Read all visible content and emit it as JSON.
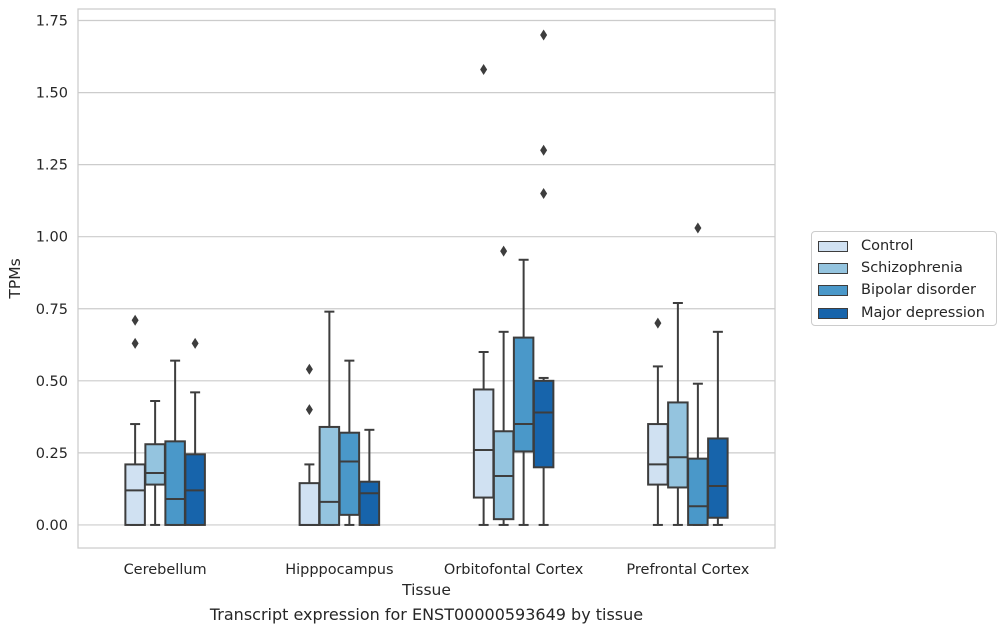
{
  "caption": "Transcript expression for ENST00000593649 by tissue",
  "chart_data": {
    "type": "box",
    "xlabel": "Tissue",
    "ylabel": "TPMs",
    "ylim": [
      -0.08,
      1.79
    ],
    "yticks": [
      "0.00",
      "0.25",
      "0.50",
      "0.75",
      "1.00",
      "1.25",
      "1.50",
      "1.75"
    ],
    "ytick_values": [
      0,
      0.25,
      0.5,
      0.75,
      1.0,
      1.25,
      1.5,
      1.75
    ],
    "grid": "horizontal",
    "legend_position": "right",
    "categories": [
      "Cerebellum",
      "Hipppocampus",
      "Orbitofontal Cortex",
      "Prefrontal Cortex"
    ],
    "series": [
      {
        "name": "Control",
        "color": "#d0e1f2",
        "boxes": [
          {
            "whislo": 0.0,
            "q1": 0.0,
            "med": 0.12,
            "q3": 0.21,
            "whishi": 0.35,
            "fliers": [
              0.63,
              0.71
            ]
          },
          {
            "whislo": 0.0,
            "q1": 0.0,
            "med": 0.0,
            "q3": 0.145,
            "whishi": 0.21,
            "fliers": [
              0.4,
              0.54
            ]
          },
          {
            "whislo": 0.0,
            "q1": 0.095,
            "med": 0.26,
            "q3": 0.47,
            "whishi": 0.6,
            "fliers": [
              1.58
            ]
          },
          {
            "whislo": 0.0,
            "q1": 0.14,
            "med": 0.21,
            "q3": 0.35,
            "whishi": 0.55,
            "fliers": [
              0.7
            ]
          }
        ]
      },
      {
        "name": "Schizophrenia",
        "color": "#94c4df",
        "boxes": [
          {
            "whislo": 0.0,
            "q1": 0.14,
            "med": 0.18,
            "q3": 0.28,
            "whishi": 0.43,
            "fliers": []
          },
          {
            "whislo": 0.0,
            "q1": 0.0,
            "med": 0.08,
            "q3": 0.34,
            "whishi": 0.74,
            "fliers": []
          },
          {
            "whislo": 0.0,
            "q1": 0.02,
            "med": 0.17,
            "q3": 0.325,
            "whishi": 0.67,
            "fliers": [
              0.95
            ]
          },
          {
            "whislo": 0.0,
            "q1": 0.13,
            "med": 0.235,
            "q3": 0.425,
            "whishi": 0.77,
            "fliers": []
          }
        ]
      },
      {
        "name": "Bipolar disorder",
        "color": "#4a98c9",
        "boxes": [
          {
            "whislo": 0.0,
            "q1": 0.0,
            "med": 0.09,
            "q3": 0.29,
            "whishi": 0.57,
            "fliers": []
          },
          {
            "whislo": 0.0,
            "q1": 0.035,
            "med": 0.22,
            "q3": 0.32,
            "whishi": 0.57,
            "fliers": []
          },
          {
            "whislo": 0.0,
            "q1": 0.255,
            "med": 0.35,
            "q3": 0.65,
            "whishi": 0.92,
            "fliers": []
          },
          {
            "whislo": 0.0,
            "q1": 0.0,
            "med": 0.065,
            "q3": 0.23,
            "whishi": 0.49,
            "fliers": [
              1.03
            ]
          }
        ]
      },
      {
        "name": "Major depression",
        "color": "#1764ab",
        "boxes": [
          {
            "whislo": 0.0,
            "q1": 0.0,
            "med": 0.12,
            "q3": 0.245,
            "whishi": 0.46,
            "fliers": [
              0.63
            ]
          },
          {
            "whislo": 0.0,
            "q1": 0.0,
            "med": 0.11,
            "q3": 0.15,
            "whishi": 0.33,
            "fliers": []
          },
          {
            "whislo": 0.0,
            "q1": 0.2,
            "med": 0.39,
            "q3": 0.5,
            "whishi": 0.51,
            "fliers": [
              1.15,
              1.3,
              1.7
            ]
          },
          {
            "whislo": 0.0,
            "q1": 0.025,
            "med": 0.135,
            "q3": 0.3,
            "whishi": 0.67,
            "fliers": []
          }
        ]
      }
    ]
  }
}
